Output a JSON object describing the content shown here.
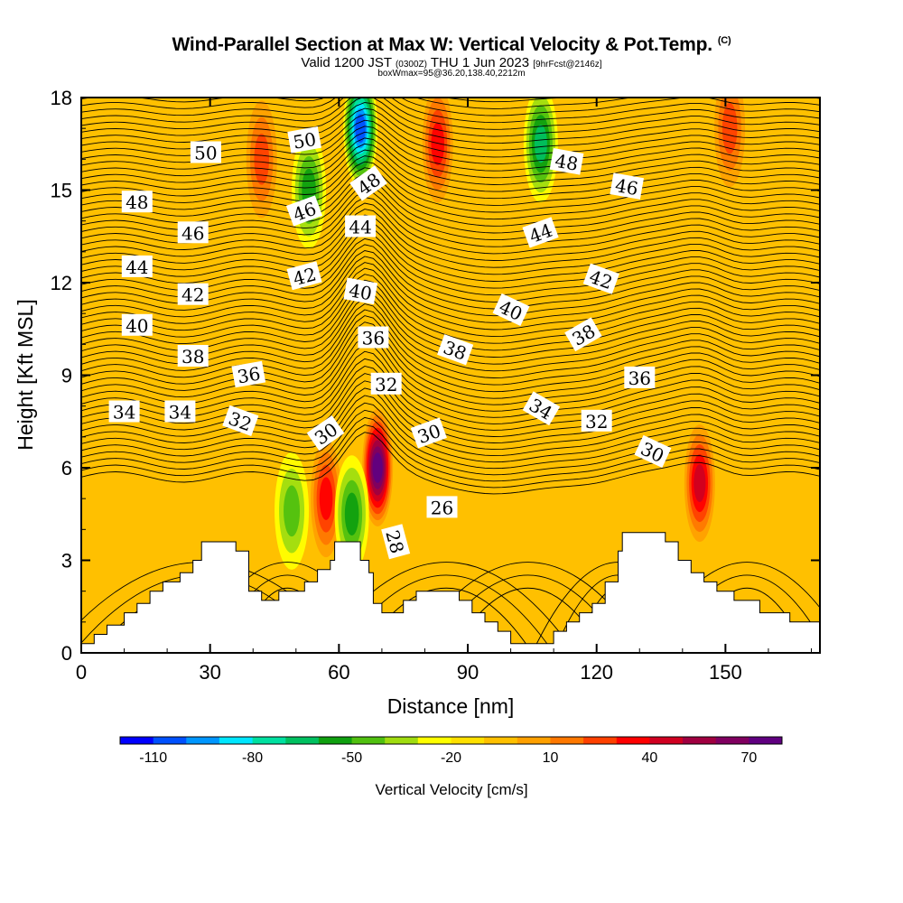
{
  "title": "Wind-Parallel Section at Max W: Vertical Velocity & Pot.Temp.",
  "title_mark": "(C)",
  "subtitle_main": "Valid 1200 JST",
  "subtitle_utc": "(0300Z)",
  "subtitle_date": "THU 1 Jun 2023",
  "subtitle_fcst": "[9hrFcst@2146z]",
  "subline": "boxWmax=95@36.20,138.40,2212m",
  "chart_data": {
    "type": "heatmap",
    "xlabel": "Distance [nm]",
    "ylabel": "Height [Kft MSL]",
    "xlim": [
      0,
      172
    ],
    "ylim": [
      0,
      18
    ],
    "x_ticks": [
      0,
      30,
      60,
      90,
      120,
      150
    ],
    "y_ticks": [
      0,
      3,
      6,
      9,
      12,
      15,
      18
    ],
    "colorbar": {
      "label": "Vertical Velocity [cm/s]",
      "tick_labels": [
        "-110",
        "-80",
        "-50",
        "-20",
        "10",
        "40",
        "70"
      ],
      "colors": [
        "#0000ff",
        "#0050ff",
        "#0096ff",
        "#00e6ff",
        "#00e0a0",
        "#00c060",
        "#10a010",
        "#50c010",
        "#a0dc10",
        "#ffff00",
        "#ffe000",
        "#ffc000",
        "#ffa000",
        "#ff7800",
        "#ff4000",
        "#ff0000",
        "#d00020",
        "#a00040",
        "#800060",
        "#600080"
      ]
    },
    "terrain": [
      [
        0,
        0.3
      ],
      [
        3,
        0.3
      ],
      [
        3,
        0.6
      ],
      [
        6,
        0.6
      ],
      [
        6,
        0.9
      ],
      [
        10,
        0.9
      ],
      [
        10,
        1.3
      ],
      [
        13,
        1.3
      ],
      [
        13,
        1.6
      ],
      [
        16,
        1.6
      ],
      [
        16,
        2.0
      ],
      [
        19,
        2.0
      ],
      [
        19,
        2.3
      ],
      [
        23,
        2.3
      ],
      [
        23,
        2.6
      ],
      [
        26,
        2.6
      ],
      [
        26,
        3.0
      ],
      [
        28,
        3.0
      ],
      [
        28,
        3.6
      ],
      [
        36,
        3.6
      ],
      [
        36,
        3.3
      ],
      [
        39,
        3.3
      ],
      [
        39,
        2.0
      ],
      [
        42,
        2.0
      ],
      [
        42,
        1.7
      ],
      [
        46,
        1.7
      ],
      [
        46,
        2.0
      ],
      [
        52,
        2.0
      ],
      [
        52,
        2.3
      ],
      [
        55,
        2.3
      ],
      [
        55,
        2.7
      ],
      [
        58,
        2.7
      ],
      [
        58,
        3.0
      ],
      [
        59,
        3.0
      ],
      [
        59,
        3.6
      ],
      [
        65,
        3.6
      ],
      [
        65,
        3.0
      ],
      [
        67,
        3.0
      ],
      [
        67,
        2.6
      ],
      [
        68,
        2.6
      ],
      [
        68,
        1.6
      ],
      [
        70,
        1.6
      ],
      [
        70,
        1.3
      ],
      [
        75,
        1.3
      ],
      [
        75,
        1.7
      ],
      [
        78,
        1.7
      ],
      [
        78,
        2.0
      ],
      [
        88,
        2.0
      ],
      [
        88,
        1.7
      ],
      [
        91,
        1.7
      ],
      [
        91,
        1.3
      ],
      [
        94,
        1.3
      ],
      [
        94,
        1.0
      ],
      [
        97,
        1.0
      ],
      [
        97,
        0.7
      ],
      [
        100,
        0.7
      ],
      [
        100,
        0.3
      ],
      [
        110,
        0.3
      ],
      [
        110,
        0.7
      ],
      [
        113,
        0.7
      ],
      [
        113,
        1.0
      ],
      [
        116,
        1.0
      ],
      [
        116,
        1.3
      ],
      [
        119,
        1.3
      ],
      [
        119,
        1.6
      ],
      [
        122,
        1.6
      ],
      [
        122,
        2.3
      ],
      [
        125,
        2.3
      ],
      [
        125,
        3.3
      ],
      [
        126,
        3.3
      ],
      [
        126,
        3.9
      ],
      [
        136,
        3.9
      ],
      [
        136,
        3.6
      ],
      [
        139,
        3.6
      ],
      [
        139,
        3.0
      ],
      [
        142,
        3.0
      ],
      [
        142,
        2.6
      ],
      [
        145,
        2.6
      ],
      [
        145,
        2.3
      ],
      [
        148,
        2.3
      ],
      [
        148,
        2.0
      ],
      [
        152,
        2.0
      ],
      [
        152,
        1.7
      ],
      [
        158,
        1.7
      ],
      [
        158,
        1.3
      ],
      [
        165,
        1.3
      ],
      [
        165,
        1.0
      ],
      [
        172,
        1.0
      ]
    ],
    "updrafts": [
      {
        "x": 69,
        "y": 6.0,
        "value": 75
      },
      {
        "x": 144,
        "y": 5.5,
        "value": 45
      },
      {
        "x": 57,
        "y": 5.0,
        "value": 35
      },
      {
        "x": 83,
        "y": 16.5,
        "value": 40
      },
      {
        "x": 42,
        "y": 16.0,
        "value": 30
      },
      {
        "x": 151,
        "y": 17.0,
        "value": 25
      }
    ],
    "downdrafts": [
      {
        "x": 65,
        "y": 17.0,
        "value": -85
      },
      {
        "x": 53,
        "y": 15.0,
        "value": -35
      },
      {
        "x": 107,
        "y": 16.5,
        "value": -45
      },
      {
        "x": 63,
        "y": 4.5,
        "value": -40
      },
      {
        "x": 49,
        "y": 4.6,
        "value": -25
      }
    ],
    "contour_labels": [
      {
        "text": "50",
        "x": 29,
        "y": 16.2,
        "angle": 0
      },
      {
        "text": "50",
        "x": 52,
        "y": 16.6,
        "angle": 10
      },
      {
        "text": "48",
        "x": 13,
        "y": 14.6,
        "angle": 0
      },
      {
        "text": "48",
        "x": 67,
        "y": 15.2,
        "angle": 35
      },
      {
        "text": "48",
        "x": 113,
        "y": 15.9,
        "angle": -10
      },
      {
        "text": "46",
        "x": 26,
        "y": 13.6,
        "angle": 0
      },
      {
        "text": "46",
        "x": 52,
        "y": 14.3,
        "angle": 20
      },
      {
        "text": "46",
        "x": 127,
        "y": 15.1,
        "angle": -10
      },
      {
        "text": "44",
        "x": 13,
        "y": 12.5,
        "angle": 0
      },
      {
        "text": "44",
        "x": 65,
        "y": 13.8,
        "angle": 0
      },
      {
        "text": "44",
        "x": 107,
        "y": 13.6,
        "angle": 20
      },
      {
        "text": "42",
        "x": 26,
        "y": 11.6,
        "angle": 0
      },
      {
        "text": "42",
        "x": 52,
        "y": 12.2,
        "angle": 15
      },
      {
        "text": "42",
        "x": 121,
        "y": 12.1,
        "angle": -20
      },
      {
        "text": "40",
        "x": 13,
        "y": 10.6,
        "angle": 0
      },
      {
        "text": "40",
        "x": 65,
        "y": 11.7,
        "angle": -10
      },
      {
        "text": "40",
        "x": 100,
        "y": 11.1,
        "angle": -25
      },
      {
        "text": "38",
        "x": 26,
        "y": 9.6,
        "angle": 0
      },
      {
        "text": "38",
        "x": 87,
        "y": 9.8,
        "angle": -20
      },
      {
        "text": "38",
        "x": 117,
        "y": 10.3,
        "angle": 30
      },
      {
        "text": "36",
        "x": 39,
        "y": 9.0,
        "angle": 10
      },
      {
        "text": "36",
        "x": 68,
        "y": 10.2,
        "angle": 0
      },
      {
        "text": "36",
        "x": 130,
        "y": 8.9,
        "angle": 0
      },
      {
        "text": "34",
        "x": 10,
        "y": 7.8,
        "angle": 0
      },
      {
        "text": "34",
        "x": 23,
        "y": 7.8,
        "angle": 0
      },
      {
        "text": "34",
        "x": 107,
        "y": 7.9,
        "angle": -30
      },
      {
        "text": "32",
        "x": 37,
        "y": 7.5,
        "angle": -20
      },
      {
        "text": "32",
        "x": 71,
        "y": 8.7,
        "angle": 0
      },
      {
        "text": "32",
        "x": 120,
        "y": 7.5,
        "angle": 0
      },
      {
        "text": "30",
        "x": 57,
        "y": 7.1,
        "angle": 35
      },
      {
        "text": "30",
        "x": 81,
        "y": 7.1,
        "angle": 20
      },
      {
        "text": "30",
        "x": 133,
        "y": 6.5,
        "angle": -25
      },
      {
        "text": "28",
        "x": 73,
        "y": 3.6,
        "angle": -75
      },
      {
        "text": "26",
        "x": 84,
        "y": 4.7,
        "angle": 0
      }
    ]
  }
}
